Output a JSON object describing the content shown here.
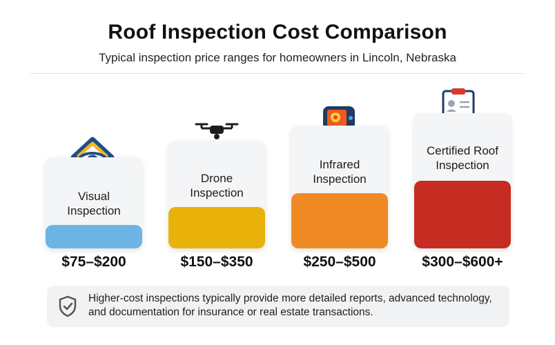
{
  "header": {
    "title": "Roof Inspection Cost Comparison",
    "subtitle": "Typical inspection price ranges for homeowners in Lincoln, Nebraska"
  },
  "cards": [
    {
      "label_line1": "Visual",
      "label_line2": "Inspection",
      "price": "$75–$200",
      "color": "#6cb4e4",
      "icon": "house-eye-icon",
      "relative_level": 0.25
    },
    {
      "label_line1": "Drone",
      "label_line2": "Inspection",
      "price": "$150–$350",
      "color": "#e9b20b",
      "icon": "drone-house-icon",
      "relative_level": 0.5
    },
    {
      "label_line1": "Infrared",
      "label_line2": "Inspection",
      "price": "$250–$500",
      "color": "#f08a24",
      "icon": "thermal-camera-icon",
      "relative_level": 0.75
    },
    {
      "label_line1": "Certified Roof",
      "label_line2": "Inspection",
      "price": "$300–$600+",
      "color": "#c62c22",
      "icon": "certificate-clipboard-icon",
      "relative_level": 1.0
    }
  ],
  "note": {
    "icon": "shield-check-icon",
    "text": "Higher-cost inspections typically provide more detailed reports, advanced technology, and documentation for insurance or real estate transactions."
  }
}
